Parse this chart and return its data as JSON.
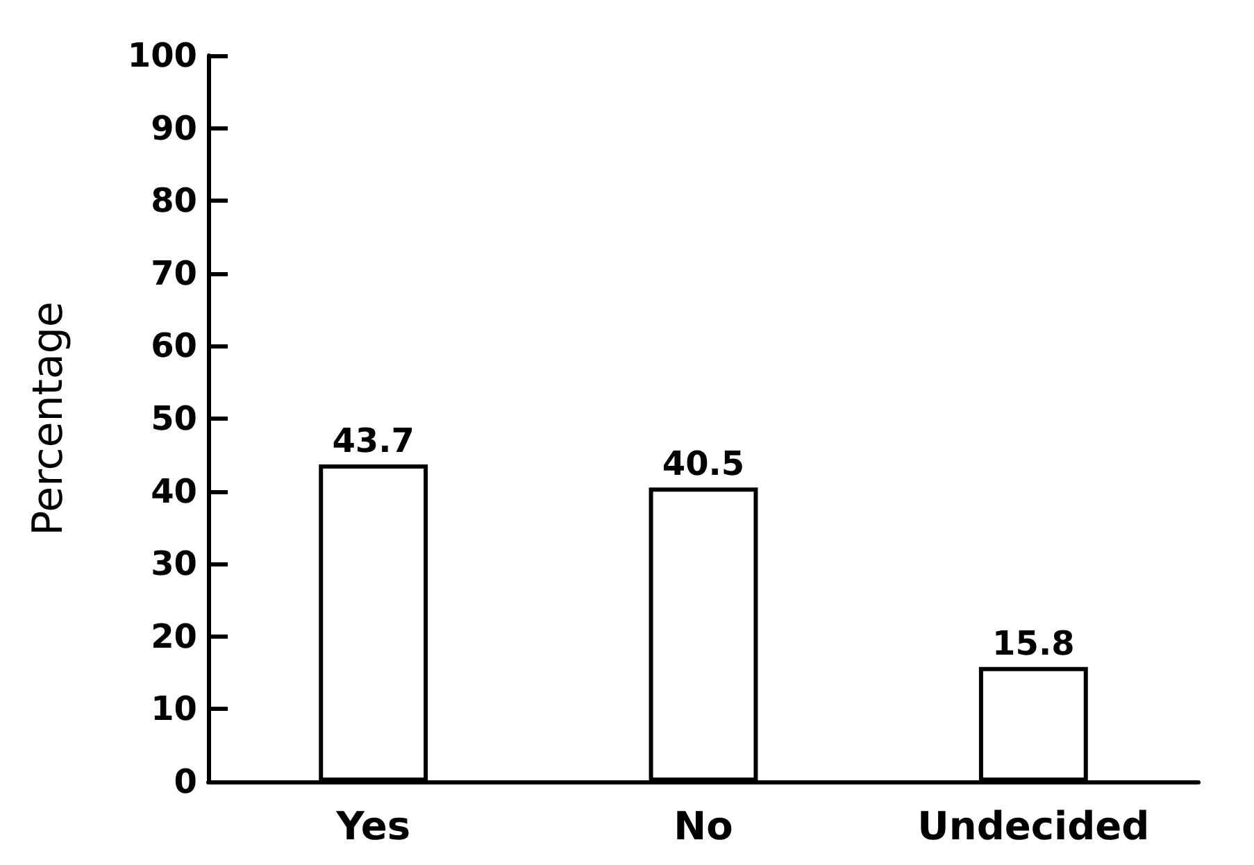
{
  "chart_data": {
    "type": "bar",
    "ylabel": "Percentage",
    "categories": [
      "Yes",
      "No",
      "Undecided"
    ],
    "values": [
      43.7,
      40.5,
      15.8
    ],
    "color": "#ffffff",
    "ylim": [
      0,
      100
    ],
    "yticks": [
      0,
      10,
      20,
      30,
      40,
      50,
      60,
      70,
      80,
      90,
      100
    ],
    "grid": false,
    "data_labels": true
  }
}
